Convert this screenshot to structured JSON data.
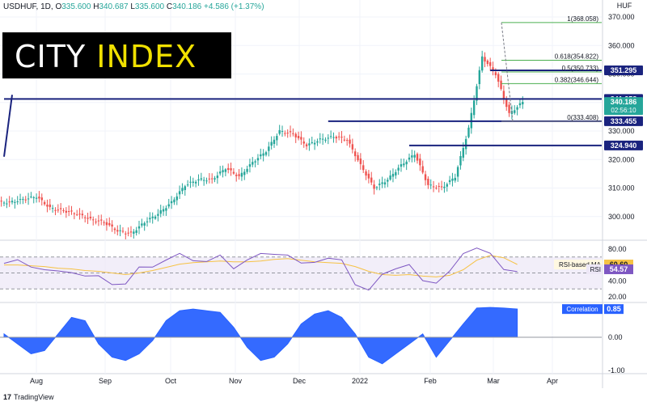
{
  "header": {
    "symbol": "USDHUF, 1D,",
    "o_label": "O",
    "o": "335.600",
    "h_label": "H",
    "h": "340.687",
    "l_label": "L",
    "l": "335.600",
    "c_label": "C",
    "c": "340.186",
    "change": "+4.586 (+1.37%)"
  },
  "logo": {
    "part1": "CITY ",
    "part2": "INDEX"
  },
  "branding": {
    "mark": "17",
    "name": "TradingView"
  },
  "colors": {
    "up": "#26a69a",
    "down": "#ef5350",
    "line": "#1a237e",
    "rsi": "#7e57c2",
    "rsi_ma": "#f6c244",
    "corr": "#2962ff"
  },
  "chart_data": [
    {
      "type": "candlestick",
      "pane": "price",
      "currency": "HUF",
      "x": [
        "Jul 1",
        "Jul 8",
        "Jul 15",
        "Jul 22",
        "Jul 29",
        "Aug 5",
        "Aug 12",
        "Aug 19",
        "Aug 26",
        "Sep 2",
        "Sep 9",
        "Sep 16",
        "Sep 23",
        "Sep 30",
        "Oct 7",
        "Oct 14",
        "Oct 21",
        "Oct 28",
        "Nov 4",
        "Nov 11",
        "Nov 18",
        "Nov 25",
        "Dec 2",
        "Dec 9",
        "Dec 16",
        "Dec 23",
        "Dec 30",
        "Jan 6",
        "Jan 13",
        "Jan 20",
        "Jan 27",
        "Feb 3",
        "Feb 10",
        "Feb 17",
        "Feb 24",
        "Mar 3",
        "Mar 10",
        "Mar 17",
        "Mar 24"
      ],
      "close": [
        305,
        306,
        307,
        303,
        302,
        301,
        299,
        298,
        295,
        294,
        298,
        301,
        305,
        311,
        313,
        313,
        317,
        314,
        319,
        323,
        330,
        329,
        325,
        327,
        328,
        327,
        318,
        310,
        313,
        318,
        322,
        311,
        310,
        314,
        331,
        356,
        350,
        336,
        340.186
      ],
      "ylim": [
        292,
        372
      ],
      "yticks": [
        300,
        310,
        320,
        330,
        340,
        350,
        360,
        370
      ],
      "xticks": [
        "Aug",
        "Sep",
        "Oct",
        "Nov",
        "Dec",
        "2022",
        "Feb",
        "Mar",
        "Apr"
      ],
      "price_labels": [
        {
          "value": 351.295,
          "text": "351.295",
          "color": "#1a237e"
        },
        {
          "value": 341.258,
          "text": "341.258",
          "color": "#1a237e"
        },
        {
          "value": 340.186,
          "text": "340.186",
          "sub": "02:56:10",
          "color": "#26a69a"
        },
        {
          "value": 333.455,
          "text": "333.455",
          "color": "#1a237e"
        },
        {
          "value": 324.94,
          "text": "324.940",
          "color": "#1a237e"
        }
      ],
      "fibonacci": [
        {
          "ratio": "1",
          "value": 368.058,
          "text": "1(368.058)",
          "color": "#4caf50"
        },
        {
          "ratio": "0.618",
          "value": 354.822,
          "text": "0.618(354.822)",
          "color": "#4caf50"
        },
        {
          "ratio": "0.5",
          "value": 350.733,
          "text": "0.5(350.733)",
          "color": "#4caf50"
        },
        {
          "ratio": "0.382",
          "value": 346.644,
          "text": "0.382(346.644)",
          "color": "#4caf50"
        },
        {
          "ratio": "0",
          "value": 333.408,
          "text": "0(333.408)",
          "color": "#787b86"
        }
      ],
      "horizontal_levels": [
        {
          "value": 341.258,
          "from": "Jul 1",
          "to": "Apr"
        },
        {
          "value": 351.295,
          "from": "Mar 10",
          "to": "Apr"
        },
        {
          "value": 333.455,
          "from": "Dec 16",
          "to": "Apr"
        },
        {
          "value": 324.94,
          "from": "Jan 27",
          "to": "Apr"
        }
      ],
      "trendline": {
        "from": {
          "x": "Jul 1",
          "y": 321
        },
        "to": {
          "x": "Mar 31",
          "y": 342.7
        }
      }
    },
    {
      "type": "line",
      "pane": "rsi",
      "ylim": [
        15,
        88
      ],
      "yticks": [
        20.0,
        40.0,
        60.0,
        80.0
      ],
      "yticklabels": [
        "20.00",
        "40.00",
        "60.00",
        "80.00"
      ],
      "bands": [
        30,
        50,
        70
      ],
      "series": [
        {
          "name": "RSI-based MA",
          "value": "60.60",
          "values": [
            60,
            60,
            59,
            58,
            56,
            55,
            53,
            52,
            50,
            48,
            50,
            53,
            57,
            61,
            63,
            64,
            65,
            64,
            64,
            65,
            67,
            68,
            66,
            64,
            63,
            62,
            58,
            52,
            48,
            47,
            48,
            46,
            45,
            47,
            54,
            66,
            72,
            69,
            60.6
          ]
        },
        {
          "name": "RSI",
          "value": "54.57",
          "values": [
            62,
            64,
            60,
            54,
            50,
            53,
            46,
            44,
            38,
            36,
            55,
            60,
            66,
            72,
            68,
            64,
            70,
            58,
            66,
            72,
            76,
            72,
            60,
            66,
            68,
            64,
            38,
            28,
            46,
            58,
            60,
            38,
            40,
            52,
            72,
            84,
            74,
            52,
            54.57
          ]
        }
      ]
    },
    {
      "type": "area",
      "pane": "correlation",
      "ylim": [
        -1.05,
        1.0
      ],
      "yticks": [
        -1.0,
        0.0,
        0.85
      ],
      "yticklabels": [
        "-1.00",
        "0.00",
        "0.85"
      ],
      "series": [
        {
          "name": "Correlation",
          "value": "0.85",
          "values": [
            0.1,
            -0.2,
            -0.5,
            -0.4,
            0.1,
            0.6,
            0.5,
            -0.2,
            -0.6,
            -0.7,
            -0.5,
            -0.1,
            0.5,
            0.8,
            0.85,
            0.8,
            0.75,
            0.3,
            -0.3,
            -0.7,
            -0.6,
            -0.2,
            0.4,
            0.7,
            0.8,
            0.6,
            0.1,
            -0.6,
            -0.8,
            -0.5,
            -0.2,
            0.1,
            -0.6,
            -0.1,
            0.4,
            0.88,
            0.9,
            0.88,
            0.85
          ]
        }
      ]
    }
  ]
}
